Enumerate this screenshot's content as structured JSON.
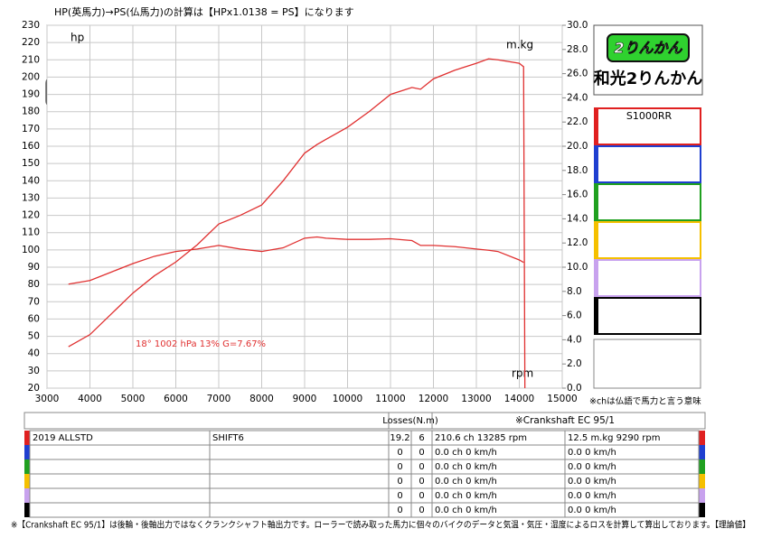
{
  "chart_data": {
    "type": "line",
    "title": "HP(英馬力)→PS(仏馬力)の計算は【HPx1.0138 = PS】になります",
    "annotations": [
      "hp",
      "m.kg",
      "rpm",
      "18°  1002 hPa  13%   G=7.67%"
    ],
    "xlim": [
      3000,
      15000
    ],
    "xticks": [
      3000,
      4000,
      5000,
      6000,
      7000,
      8000,
      9000,
      10000,
      11000,
      12000,
      13000,
      14000,
      15000
    ],
    "ylim": [
      20,
      230
    ],
    "yticks": [
      20,
      30,
      40,
      50,
      60,
      70,
      80,
      90,
      100,
      110,
      120,
      130,
      140,
      150,
      160,
      170,
      180,
      190,
      200,
      210,
      220,
      230
    ],
    "y2lim": [
      0,
      30
    ],
    "y2ticks": [
      {
        "value": 0,
        "label": "0.0"
      },
      {
        "value": 2,
        "label": "2.0"
      },
      {
        "value": 4,
        "label": "4.0"
      },
      {
        "value": 6,
        "label": "6.0"
      },
      {
        "value": 8,
        "label": "8.0"
      },
      {
        "value": 10,
        "label": "10.0"
      },
      {
        "value": 12,
        "label": "12.0"
      },
      {
        "value": 14,
        "label": "14.0"
      },
      {
        "value": 16,
        "label": "16.0"
      },
      {
        "value": 18,
        "label": "18.0"
      },
      {
        "value": 20,
        "label": "20.0"
      },
      {
        "value": 22,
        "label": "22.0"
      },
      {
        "value": 24,
        "label": "24.0"
      },
      {
        "value": 26,
        "label": "26.0"
      },
      {
        "value": 28,
        "label": "28.0"
      },
      {
        "value": 30,
        "label": "30.0"
      }
    ],
    "grid": true,
    "x": [
      3500,
      4000,
      4500,
      5000,
      5500,
      6000,
      6500,
      7000,
      7500,
      8000,
      8500,
      9000,
      9290,
      9500,
      10000,
      10500,
      11000,
      11500,
      11700,
      12000,
      12500,
      13000,
      13285,
      13500,
      14000,
      14100,
      14130
    ],
    "series": [
      {
        "color": "#e03030",
        "values": [
          44,
          51,
          63,
          75,
          85,
          93,
          103,
          115,
          120,
          126,
          140,
          156,
          161,
          164,
          171,
          180,
          190,
          194,
          193,
          199,
          204,
          208,
          210.6,
          210,
          208,
          206,
          20
        ]
      },
      {
        "color": "#e03030",
        "axis": "y2",
        "values": [
          8.6,
          8.9,
          9.6,
          10.3,
          10.9,
          11.3,
          11.5,
          11.8,
          11.5,
          11.3,
          11.6,
          12.4,
          12.5,
          12.4,
          12.3,
          12.3,
          12.35,
          12.2,
          11.8,
          11.8,
          11.7,
          11.5,
          11.4,
          11.3,
          10.6,
          10.4,
          null
        ]
      }
    ]
  },
  "logo": {
    "text": "2りんかん",
    "store": "和光2りんかん"
  },
  "models": [
    "S1000RR"
  ],
  "note": "※chは仏語で馬力と言う意味",
  "table": {
    "header": {
      "losses": "Losses(N.m)",
      "crank": "※Crankshaft EC 95/1"
    },
    "rows": [
      {
        "color": "#e02020",
        "car": "2019 ALLSTD",
        "spec": "SHIFT6",
        "losses": 19.2,
        "n": 6,
        "power": "210.6 ch 13285 rpm",
        "torque": "12.5 m.kg 9290 rpm"
      },
      {
        "color": "#1f3fd0",
        "losses": 0,
        "n": 0,
        "power": "0.0 ch 0 km/h",
        "torque": "0.0  0 km/h"
      },
      {
        "color": "#20a020",
        "losses": 0,
        "n": 0,
        "power": "0.0 ch 0 km/h",
        "torque": "0.0  0 km/h"
      },
      {
        "color": "#f5c000",
        "losses": 0,
        "n": 0,
        "power": "0.0 ch 0 km/h",
        "torque": "0.0  0 km/h"
      },
      {
        "color": "#c8a2ee",
        "losses": 0,
        "n": 0,
        "power": "0.0 ch 0 km/h",
        "torque": "0.0  0 km/h"
      },
      {
        "color": "#000000",
        "losses": 0,
        "n": 0,
        "power": "0.0 ch 0 km/h",
        "torque": "0.0  0 km/h"
      }
    ]
  },
  "footer": "※【Crankshaft EC 95/1】は後輪・後軸出力ではなくクランクシャフト軸出力です。ローラーで読み取った馬力に個々のバイクのデータと気温・気圧・湿度によるロスを計算して算出しております。【理論値】"
}
